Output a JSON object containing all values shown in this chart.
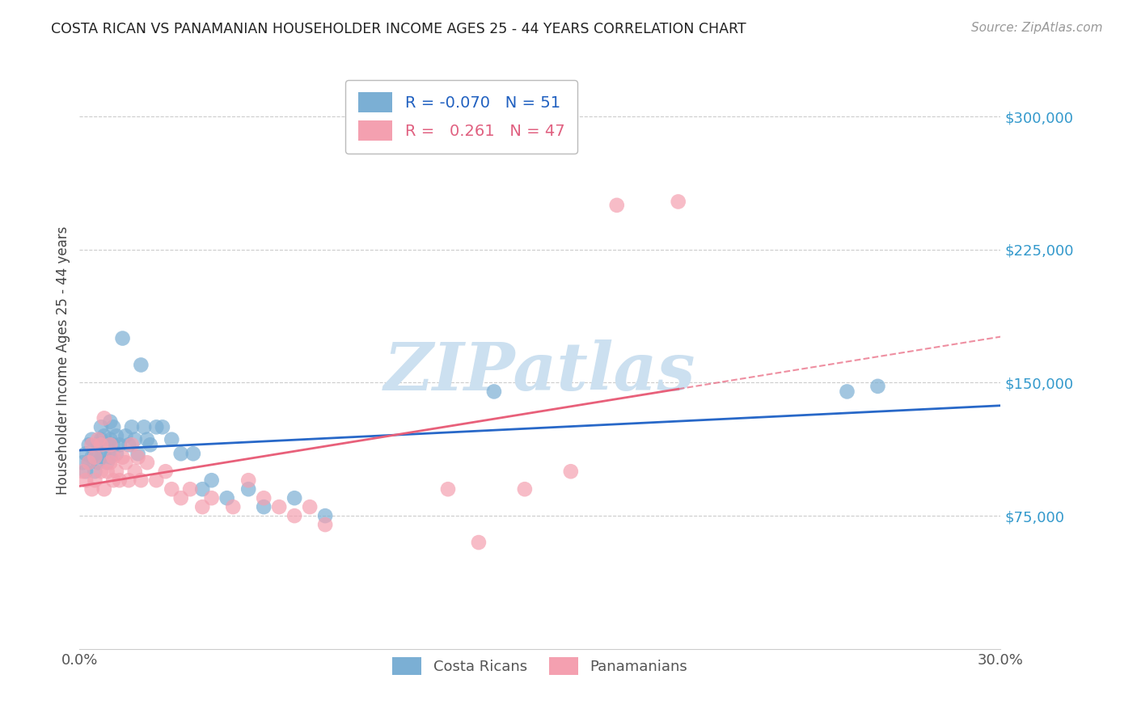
{
  "title": "COSTA RICAN VS PANAMANIAN HOUSEHOLDER INCOME AGES 25 - 44 YEARS CORRELATION CHART",
  "source": "Source: ZipAtlas.com",
  "ylabel": "Householder Income Ages 25 - 44 years",
  "xlim": [
    0.0,
    0.3
  ],
  "ylim": [
    0,
    325000
  ],
  "yticks": [
    75000,
    150000,
    225000,
    300000
  ],
  "ytick_labels": [
    "$75,000",
    "$150,000",
    "$225,000",
    "$300,000"
  ],
  "xticks": [
    0.0,
    0.05,
    0.1,
    0.15,
    0.2,
    0.25,
    0.3
  ],
  "xtick_labels": [
    "0.0%",
    "",
    "",
    "",
    "",
    "",
    "30.0%"
  ],
  "bg_color": "#ffffff",
  "grid_color": "#cccccc",
  "costa_rica_color": "#7bafd4",
  "panama_color": "#f4a0b0",
  "costa_rica_line_color": "#2868c8",
  "panama_line_color": "#e8607a",
  "watermark_text": "ZIPatlas",
  "watermark_color": "#cce0f0",
  "legend_r_costa": "-0.070",
  "legend_n_costa": "51",
  "legend_r_panama": " 0.261",
  "legend_n_panama": "47",
  "costa_rica_x": [
    0.001,
    0.002,
    0.002,
    0.003,
    0.003,
    0.004,
    0.004,
    0.005,
    0.005,
    0.006,
    0.006,
    0.007,
    0.007,
    0.007,
    0.008,
    0.008,
    0.009,
    0.009,
    0.01,
    0.01,
    0.01,
    0.011,
    0.011,
    0.012,
    0.012,
    0.013,
    0.014,
    0.015,
    0.016,
    0.017,
    0.018,
    0.019,
    0.02,
    0.021,
    0.022,
    0.023,
    0.025,
    0.027,
    0.03,
    0.033,
    0.037,
    0.04,
    0.043,
    0.048,
    0.055,
    0.06,
    0.07,
    0.08,
    0.135,
    0.25,
    0.26
  ],
  "costa_rica_y": [
    105000,
    100000,
    110000,
    105000,
    115000,
    108000,
    118000,
    110000,
    100000,
    105000,
    115000,
    108000,
    118000,
    125000,
    110000,
    120000,
    105000,
    115000,
    108000,
    118000,
    128000,
    115000,
    125000,
    110000,
    120000,
    115000,
    175000,
    120000,
    115000,
    125000,
    118000,
    110000,
    160000,
    125000,
    118000,
    115000,
    125000,
    125000,
    118000,
    110000,
    110000,
    90000,
    95000,
    85000,
    90000,
    80000,
    85000,
    75000,
    145000,
    145000,
    148000
  ],
  "panama_x": [
    0.001,
    0.002,
    0.003,
    0.004,
    0.004,
    0.005,
    0.005,
    0.006,
    0.007,
    0.007,
    0.008,
    0.008,
    0.009,
    0.01,
    0.01,
    0.011,
    0.011,
    0.012,
    0.013,
    0.014,
    0.015,
    0.016,
    0.017,
    0.018,
    0.019,
    0.02,
    0.022,
    0.025,
    0.028,
    0.03,
    0.033,
    0.036,
    0.04,
    0.043,
    0.05,
    0.055,
    0.06,
    0.065,
    0.07,
    0.075,
    0.08,
    0.12,
    0.13,
    0.145,
    0.16,
    0.175,
    0.195
  ],
  "panama_y": [
    100000,
    95000,
    105000,
    90000,
    115000,
    108000,
    95000,
    118000,
    100000,
    115000,
    90000,
    130000,
    100000,
    105000,
    115000,
    95000,
    108000,
    100000,
    95000,
    108000,
    105000,
    95000,
    115000,
    100000,
    108000,
    95000,
    105000,
    95000,
    100000,
    90000,
    85000,
    90000,
    80000,
    85000,
    80000,
    95000,
    85000,
    80000,
    75000,
    80000,
    70000,
    90000,
    60000,
    90000,
    100000,
    250000,
    252000
  ]
}
